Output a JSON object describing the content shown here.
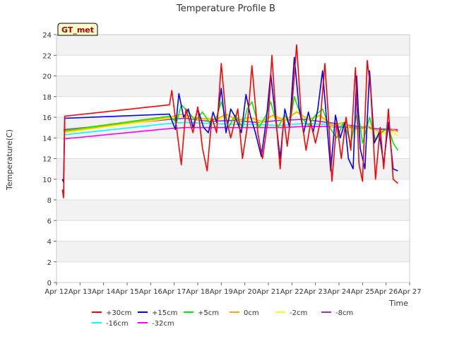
{
  "chart_data": {
    "type": "line",
    "title": "Temperature Profile B",
    "xlabel": "Time",
    "ylabel": "Temperature(C)",
    "annotation": "GT_met",
    "xlim": [
      12,
      27
    ],
    "ylim": [
      0,
      24
    ],
    "x_ticks": [
      12,
      13,
      14,
      15,
      16,
      17,
      18,
      19,
      20,
      21,
      22,
      23,
      24,
      25,
      26,
      27
    ],
    "x_tick_labels": [
      "Apr 12",
      "Apr 13",
      "Apr 14",
      "Apr 15",
      "Apr 16",
      "Apr 17",
      "Apr 18",
      "Apr 19",
      "Apr 20",
      "Apr 21",
      "Apr 22",
      "Apr 23",
      "Apr 24",
      "Apr 25",
      "Apr 26",
      "Apr 27"
    ],
    "y_ticks": [
      0,
      2,
      4,
      6,
      8,
      10,
      12,
      14,
      16,
      18,
      20,
      22,
      24
    ],
    "y_tick_labels": [
      "0",
      "2",
      "4",
      "6",
      "8",
      "10",
      "12",
      "14",
      "16",
      "18",
      "20",
      "22",
      "24"
    ],
    "grid": true,
    "legend_position": "bottom",
    "series": [
      {
        "name": "+30cm",
        "color": "#ff0000",
        "points": [
          [
            12.25,
            9.0
          ],
          [
            12.3,
            8.2
          ],
          [
            12.35,
            16.1
          ],
          [
            16.8,
            17.2
          ],
          [
            16.9,
            18.6
          ],
          [
            17.1,
            15.0
          ],
          [
            17.3,
            11.4
          ],
          [
            17.5,
            16.8
          ],
          [
            17.8,
            14.5
          ],
          [
            18.0,
            17.0
          ],
          [
            18.2,
            13.0
          ],
          [
            18.4,
            10.8
          ],
          [
            18.6,
            16.0
          ],
          [
            18.8,
            14.5
          ],
          [
            19.0,
            21.2
          ],
          [
            19.2,
            16.0
          ],
          [
            19.4,
            14.0
          ],
          [
            19.7,
            16.8
          ],
          [
            19.9,
            12.0
          ],
          [
            20.1,
            15.0
          ],
          [
            20.3,
            21.0
          ],
          [
            20.55,
            14.5
          ],
          [
            20.75,
            12.0
          ],
          [
            21.0,
            16.0
          ],
          [
            21.15,
            22.0
          ],
          [
            21.35,
            15.0
          ],
          [
            21.5,
            11.0
          ],
          [
            21.65,
            16.0
          ],
          [
            21.8,
            13.2
          ],
          [
            22.0,
            17.0
          ],
          [
            22.2,
            23.0
          ],
          [
            22.4,
            16.0
          ],
          [
            22.6,
            12.8
          ],
          [
            22.8,
            15.5
          ],
          [
            23.0,
            13.5
          ],
          [
            23.2,
            15.5
          ],
          [
            23.4,
            21.2
          ],
          [
            23.55,
            16.0
          ],
          [
            23.7,
            9.8
          ],
          [
            23.9,
            15.5
          ],
          [
            24.1,
            12.0
          ],
          [
            24.3,
            16.0
          ],
          [
            24.5,
            12.8
          ],
          [
            24.7,
            20.8
          ],
          [
            24.85,
            11.5
          ],
          [
            25.0,
            9.8
          ],
          [
            25.2,
            21.5
          ],
          [
            25.35,
            18.5
          ],
          [
            25.55,
            10.0
          ],
          [
            25.75,
            15.0
          ],
          [
            25.9,
            11.0
          ],
          [
            26.1,
            16.8
          ],
          [
            26.3,
            10.0
          ],
          [
            26.5,
            9.6
          ]
        ]
      },
      {
        "name": "+15cm",
        "color": "#0000ff",
        "points": [
          [
            12.25,
            10.0
          ],
          [
            12.3,
            9.7
          ],
          [
            12.35,
            15.9
          ],
          [
            16.8,
            16.3
          ],
          [
            17.05,
            14.8
          ],
          [
            17.2,
            18.3
          ],
          [
            17.4,
            16.0
          ],
          [
            17.6,
            16.8
          ],
          [
            17.8,
            15.0
          ],
          [
            18.0,
            16.8
          ],
          [
            18.25,
            15.0
          ],
          [
            18.45,
            14.5
          ],
          [
            18.65,
            16.5
          ],
          [
            18.8,
            15.5
          ],
          [
            19.0,
            18.8
          ],
          [
            19.2,
            14.5
          ],
          [
            19.4,
            16.8
          ],
          [
            19.6,
            16.0
          ],
          [
            19.85,
            14.5
          ],
          [
            20.05,
            18.2
          ],
          [
            20.25,
            16.0
          ],
          [
            20.45,
            14.5
          ],
          [
            20.7,
            12.2
          ],
          [
            20.9,
            15.5
          ],
          [
            21.1,
            20.2
          ],
          [
            21.3,
            16.0
          ],
          [
            21.5,
            12.0
          ],
          [
            21.7,
            16.8
          ],
          [
            21.9,
            15.0
          ],
          [
            22.1,
            21.8
          ],
          [
            22.3,
            17.0
          ],
          [
            22.5,
            14.5
          ],
          [
            22.7,
            16.5
          ],
          [
            22.9,
            14.5
          ],
          [
            23.1,
            16.8
          ],
          [
            23.3,
            20.5
          ],
          [
            23.5,
            15.0
          ],
          [
            23.65,
            10.8
          ],
          [
            23.85,
            16.2
          ],
          [
            24.05,
            14.0
          ],
          [
            24.25,
            15.5
          ],
          [
            24.4,
            12.0
          ],
          [
            24.6,
            11.0
          ],
          [
            24.75,
            20.0
          ],
          [
            24.9,
            13.0
          ],
          [
            25.1,
            11.0
          ],
          [
            25.3,
            20.5
          ],
          [
            25.5,
            13.5
          ],
          [
            25.7,
            14.5
          ],
          [
            25.9,
            11.5
          ],
          [
            26.1,
            15.5
          ],
          [
            26.3,
            11.0
          ],
          [
            26.5,
            10.8
          ]
        ]
      },
      {
        "name": "+5cm",
        "color": "#00ee00",
        "points": [
          [
            12.3,
            14.7
          ],
          [
            16.8,
            16.1
          ],
          [
            17.1,
            15.5
          ],
          [
            17.3,
            17.2
          ],
          [
            17.6,
            16.5
          ],
          [
            17.9,
            15.7
          ],
          [
            18.2,
            16.5
          ],
          [
            18.5,
            15.5
          ],
          [
            18.8,
            16.0
          ],
          [
            19.0,
            17.5
          ],
          [
            19.3,
            15.0
          ],
          [
            19.6,
            16.2
          ],
          [
            19.9,
            15.0
          ],
          [
            20.1,
            16.8
          ],
          [
            20.3,
            17.5
          ],
          [
            20.6,
            15.0
          ],
          [
            20.9,
            16.2
          ],
          [
            21.1,
            17.5
          ],
          [
            21.4,
            15.0
          ],
          [
            21.7,
            16.2
          ],
          [
            21.9,
            15.2
          ],
          [
            22.1,
            18.0
          ],
          [
            22.4,
            16.0
          ],
          [
            22.7,
            15.2
          ],
          [
            23.0,
            16.2
          ],
          [
            23.3,
            16.8
          ],
          [
            23.6,
            15.0
          ],
          [
            23.9,
            14.0
          ],
          [
            24.2,
            15.5
          ],
          [
            24.5,
            13.5
          ],
          [
            24.8,
            16.8
          ],
          [
            25.0,
            13.5
          ],
          [
            25.3,
            16.0
          ],
          [
            25.55,
            13.8
          ],
          [
            25.8,
            14.5
          ],
          [
            26.1,
            15.0
          ],
          [
            26.3,
            13.5
          ],
          [
            26.5,
            12.8
          ]
        ]
      },
      {
        "name": "0cm",
        "color": "#ffa500",
        "points": [
          [
            12.3,
            14.6
          ],
          [
            16.8,
            16.0
          ],
          [
            17.3,
            16.3
          ],
          [
            18.0,
            15.9
          ],
          [
            18.8,
            15.8
          ],
          [
            19.2,
            16.3
          ],
          [
            19.7,
            15.7
          ],
          [
            20.2,
            16.0
          ],
          [
            20.7,
            15.6
          ],
          [
            21.2,
            16.2
          ],
          [
            21.7,
            15.7
          ],
          [
            22.2,
            16.5
          ],
          [
            22.7,
            15.8
          ],
          [
            23.2,
            16.2
          ],
          [
            23.7,
            15.2
          ],
          [
            24.2,
            15.5
          ],
          [
            24.7,
            14.8
          ],
          [
            25.2,
            15.2
          ],
          [
            25.7,
            14.6
          ],
          [
            26.2,
            14.9
          ],
          [
            26.5,
            14.6
          ]
        ]
      },
      {
        "name": "-2cm",
        "color": "#ffff00",
        "points": [
          [
            12.3,
            14.5
          ],
          [
            16.8,
            15.9
          ],
          [
            17.3,
            16.1
          ],
          [
            18.0,
            15.8
          ],
          [
            18.8,
            15.7
          ],
          [
            19.2,
            16.2
          ],
          [
            19.7,
            15.6
          ],
          [
            20.2,
            15.9
          ],
          [
            20.7,
            15.5
          ],
          [
            21.2,
            16.1
          ],
          [
            21.7,
            15.6
          ],
          [
            22.2,
            16.6
          ],
          [
            22.7,
            15.7
          ],
          [
            23.2,
            16.1
          ],
          [
            23.7,
            15.1
          ],
          [
            24.2,
            15.4
          ],
          [
            24.7,
            14.5
          ],
          [
            25.2,
            15.0
          ],
          [
            25.7,
            14.3
          ],
          [
            26.2,
            14.7
          ],
          [
            26.5,
            14.2
          ]
        ]
      },
      {
        "name": "-8cm",
        "color": "#9a32cd",
        "points": [
          [
            12.3,
            14.8
          ],
          [
            16.8,
            15.8
          ],
          [
            17.5,
            15.9
          ],
          [
            18.5,
            15.6
          ],
          [
            19.5,
            15.7
          ],
          [
            20.5,
            15.5
          ],
          [
            21.5,
            15.7
          ],
          [
            22.5,
            15.8
          ],
          [
            23.5,
            15.5
          ],
          [
            24.5,
            15.2
          ],
          [
            25.5,
            14.9
          ],
          [
            26.5,
            14.7
          ]
        ]
      },
      {
        "name": "-16cm",
        "color": "#00ffff",
        "points": [
          [
            12.3,
            14.3
          ],
          [
            16.8,
            15.4
          ],
          [
            17.5,
            15.5
          ],
          [
            18.5,
            15.4
          ],
          [
            19.5,
            15.3
          ],
          [
            20.5,
            15.3
          ],
          [
            21.5,
            15.2
          ],
          [
            22.5,
            15.4
          ],
          [
            23.5,
            15.3
          ],
          [
            24.5,
            15.1
          ],
          [
            25.5,
            14.9
          ],
          [
            26.5,
            14.7
          ]
        ]
      },
      {
        "name": "-32cm",
        "color": "#ff00ff",
        "points": [
          [
            12.3,
            13.9
          ],
          [
            16.8,
            14.9
          ],
          [
            17.5,
            15.0
          ],
          [
            18.5,
            15.0
          ],
          [
            19.5,
            15.0
          ],
          [
            20.5,
            15.0
          ],
          [
            21.5,
            15.0
          ],
          [
            22.5,
            15.1
          ],
          [
            23.5,
            15.1
          ],
          [
            24.5,
            15.0
          ],
          [
            25.5,
            14.9
          ],
          [
            26.5,
            14.8
          ]
        ]
      }
    ]
  }
}
